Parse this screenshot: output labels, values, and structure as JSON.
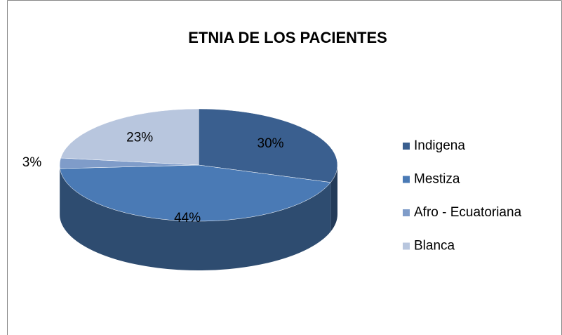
{
  "chart_data": {
    "type": "pie3d",
    "title": "ETNIA DE LOS PACIENTES",
    "categories": [
      "Indigena",
      "Mestiza",
      "Afro - Ecuatoriana",
      "Blanca"
    ],
    "values": [
      30,
      44,
      3,
      23
    ],
    "value_labels": [
      "30%",
      "44%",
      "3%",
      "23%"
    ],
    "colors": [
      "#3a5f8f",
      "#4a7ab5",
      "#7f9cc9",
      "#b8c6de"
    ],
    "legend": "right"
  }
}
